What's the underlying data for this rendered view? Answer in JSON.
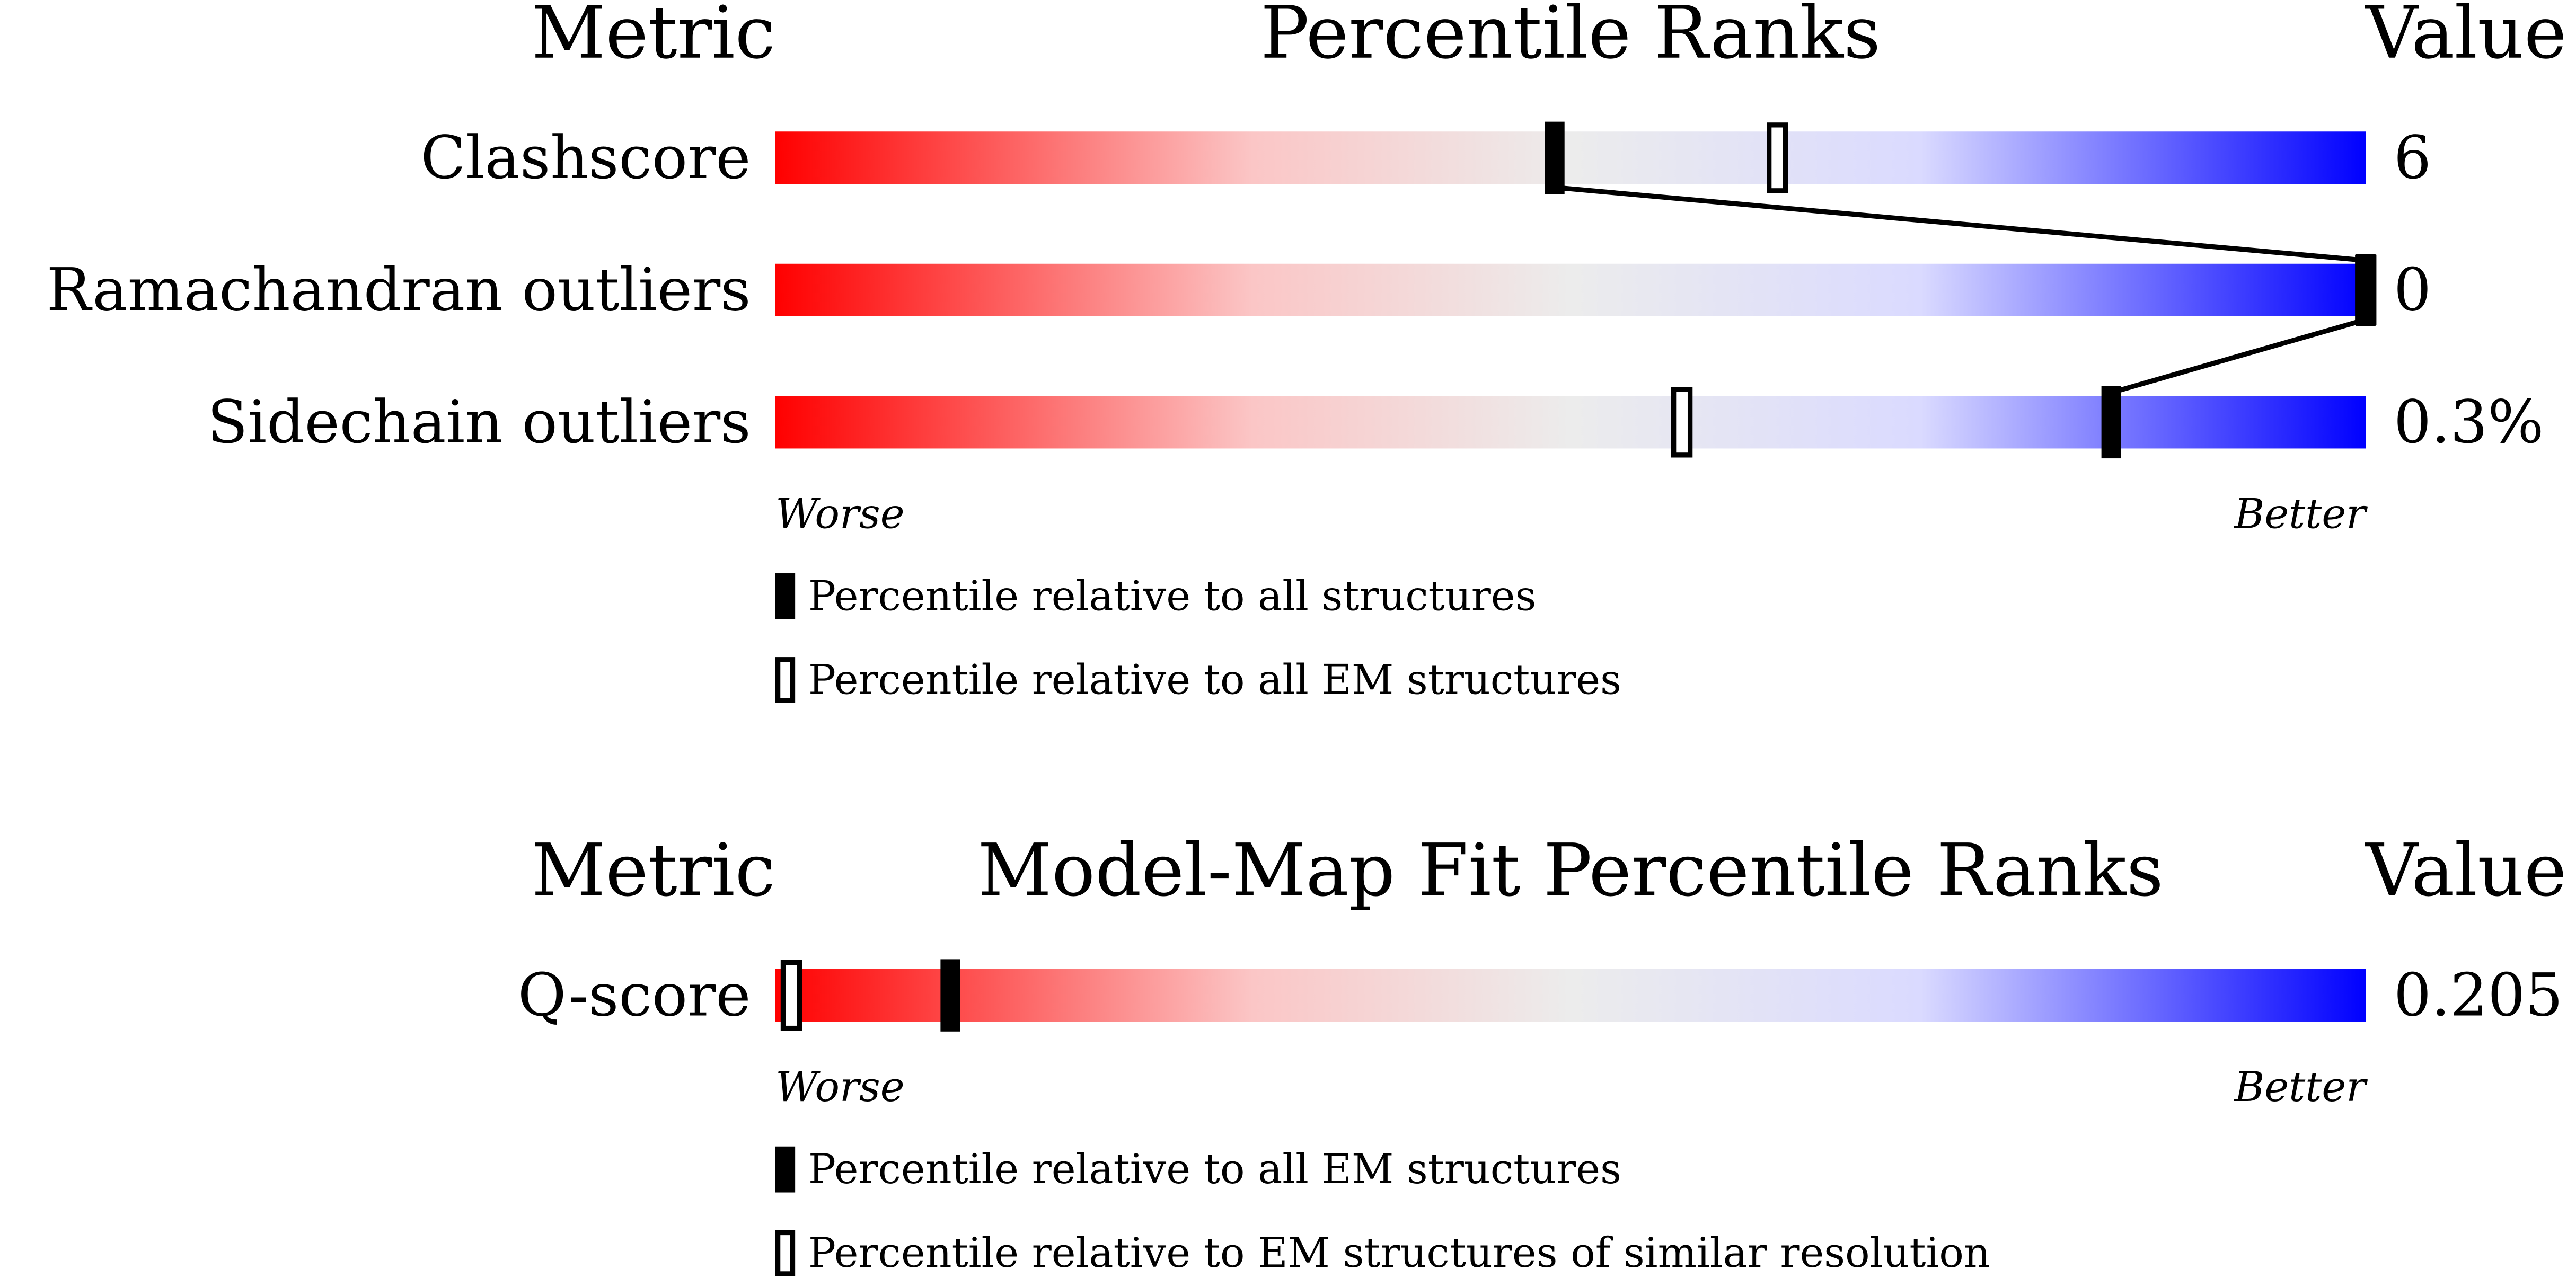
{
  "chart_data": [
    {
      "type": "slider",
      "metric_header": "Metric",
      "title": "Percentile Ranks",
      "value_header": "Value",
      "categories": [
        "Clashscore",
        "Ramachandran outliers",
        "Sidechain outliers"
      ],
      "metric_values": [
        "6",
        "0",
        "0.3%"
      ],
      "series": [
        {
          "name": "Percentile relative to all structures",
          "style": "filled",
          "color": "#000000",
          "values": [
            49,
            100,
            84
          ]
        },
        {
          "name": "Percentile relative to all EM structures",
          "style": "open",
          "color": "#000000",
          "values": [
            63,
            100,
            57
          ]
        }
      ],
      "xlim": [
        0,
        100
      ],
      "worse_label": "Worse",
      "better_label": "Better",
      "connect_filled": true
    },
    {
      "type": "slider",
      "metric_header": "Metric",
      "title": "Model-Map Fit Percentile Ranks",
      "value_header": "Value",
      "categories": [
        "Q-score"
      ],
      "metric_values": [
        "0.205"
      ],
      "series": [
        {
          "name": "Percentile relative to all EM structures",
          "style": "filled",
          "color": "#000000",
          "values": [
            11
          ]
        },
        {
          "name": "Percentile relative to EM structures of similar resolution",
          "style": "open",
          "color": "#000000",
          "values": [
            1
          ]
        }
      ],
      "xlim": [
        0,
        100
      ],
      "worse_label": "Worse",
      "better_label": "Better",
      "connect_filled": true
    }
  ]
}
